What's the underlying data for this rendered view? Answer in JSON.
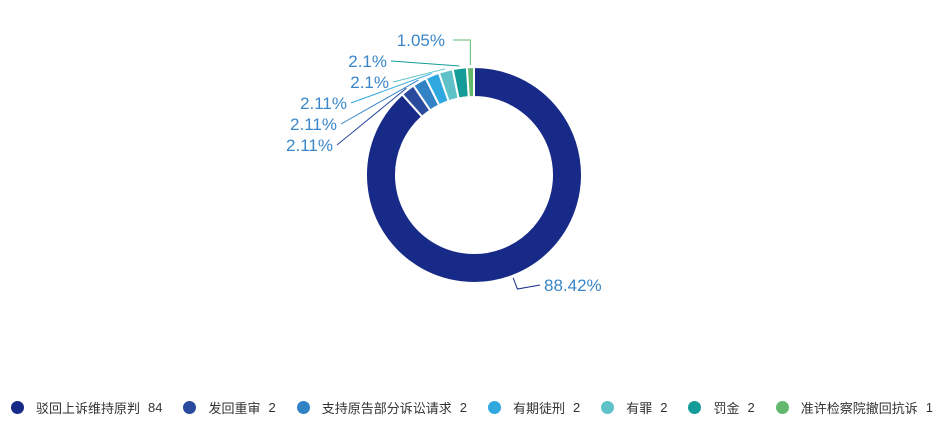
{
  "chart_data": {
    "type": "pie",
    "variant": "donut",
    "legend_placement": "bottom",
    "categories": [
      "驳回上诉维持原判",
      "发回重审",
      "支持原告部分诉讼请求",
      "有期徒刑",
      "有罪",
      "罚金",
      "准许检察院撤回抗诉"
    ],
    "values": [
      84,
      2,
      2,
      2,
      2,
      2,
      1
    ],
    "percent_labels": [
      "88.42%",
      "2.11%",
      "2.11%",
      "2.11%",
      "2.1%",
      "2.1%",
      "1.05%"
    ],
    "colors": [
      "#172a88",
      "#2a4a9e",
      "#3282c6",
      "#2fa8e0",
      "#5fc2c8",
      "#139b98",
      "#62b96e"
    ],
    "label_color": "#3a86c8"
  }
}
